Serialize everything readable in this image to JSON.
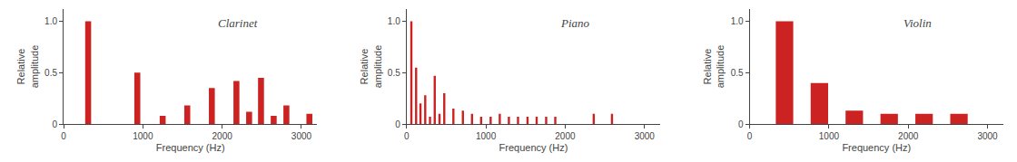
{
  "chart_data": [
    {
      "type": "bar",
      "title": "Clarinet",
      "x": [
        310,
        930,
        1250,
        1560,
        1870,
        2180,
        2340,
        2490,
        2650,
        2810,
        3100
      ],
      "values": [
        1.0,
        0.5,
        0.08,
        0.18,
        0.35,
        0.42,
        0.12,
        0.45,
        0.08,
        0.18,
        0.1
      ],
      "color": "#cc2222",
      "xlabel": "Frequency (Hz)",
      "ylabel": "Relative\namplitude",
      "xlim": [
        0,
        3200
      ],
      "ylim": [
        0,
        1.12
      ],
      "xticks": [
        0,
        1000,
        2000,
        3000
      ],
      "yticks": [
        0,
        0.5,
        {
          "value": 1,
          "label": "1.0"
        }
      ],
      "grid": false
    },
    {
      "type": "bar",
      "title": "Piano",
      "x": [
        60,
        120,
        175,
        235,
        295,
        355,
        415,
        475,
        590,
        710,
        825,
        940,
        1060,
        1175,
        1290,
        1405,
        1525,
        1640,
        1760,
        1875,
        2360,
        2590
      ],
      "values": [
        1.0,
        0.55,
        0.2,
        0.28,
        0.07,
        0.47,
        0.1,
        0.3,
        0.15,
        0.13,
        0.1,
        0.07,
        0.07,
        0.1,
        0.07,
        0.07,
        0.07,
        0.07,
        0.07,
        0.07,
        0.1,
        0.1
      ],
      "color": "#cc2222",
      "xlabel": "Frequency (Hz)",
      "ylabel": "Relative\namplitude",
      "xlim": [
        0,
        3200
      ],
      "ylim": [
        0,
        1.12
      ],
      "xticks": [
        0,
        1000,
        2000,
        3000
      ],
      "yticks": [
        0,
        0.5,
        {
          "value": 1,
          "label": "1.0"
        }
      ],
      "grid": false
    },
    {
      "type": "bar",
      "title": "Violin",
      "x": [
        440,
        880,
        1320,
        1760,
        2200,
        2640
      ],
      "values": [
        1.0,
        0.4,
        0.13,
        0.1,
        0.1,
        0.1
      ],
      "color": "#cc2222",
      "xlabel": "Frequency (Hz)",
      "ylabel": "Relative\namplitude",
      "xlim": [
        0,
        3200
      ],
      "ylim": [
        0,
        1.12
      ],
      "xticks": [
        0,
        1000,
        2000,
        3000
      ],
      "yticks": [
        0,
        0.5,
        {
          "value": 1,
          "label": "1.0"
        }
      ],
      "grid": false
    }
  ]
}
